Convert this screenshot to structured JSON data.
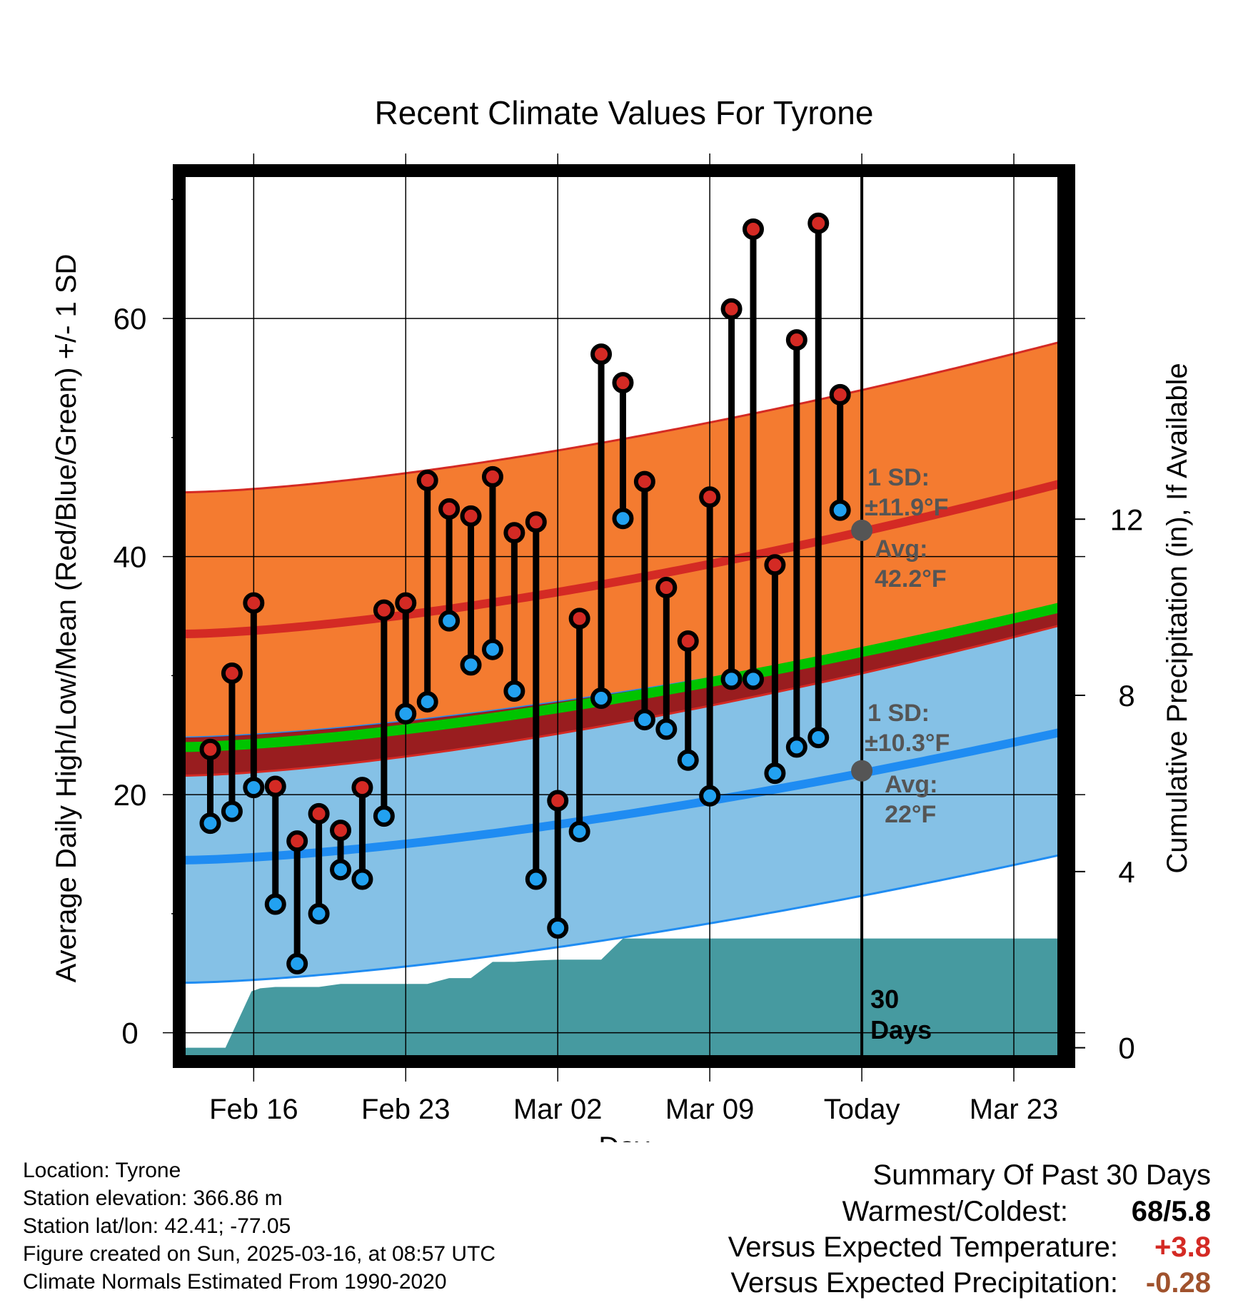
{
  "chart_data": {
    "type": "line",
    "title": "Recent Climate Values For Tyrone",
    "xlabel": "Day",
    "ylabel_left": "Average Daily High/Low/Mean (Red/Blue/Green) +/- 1 SD",
    "ylabel_right": "Cumulative Precipitation (in), If Available",
    "x_tick_labels": [
      "Feb 16",
      "Feb 23",
      "Mar 02",
      "Mar 09",
      "Today",
      "Mar 23"
    ],
    "x_tick_days": [
      16,
      23,
      30,
      37,
      44,
      51
    ],
    "x_range_days": [
      12.8,
      53.3
    ],
    "ylim_left": [
      -2,
      72
    ],
    "yticks_left": [
      0,
      20,
      40,
      60
    ],
    "ylim_right": [
      -0.2,
      19.8
    ],
    "yticks_right": [
      0,
      4,
      8,
      12
    ],
    "today_day": 44,
    "grid": true,
    "normals": {
      "high_mean": {
        "start": 33.5,
        "end": 46.2
      },
      "high_sd": 11.9,
      "low_mean": {
        "start": 14.5,
        "end": 25.3
      },
      "low_sd": 10.3,
      "mean_mean": {
        "start": 24.0,
        "end": 35.8
      },
      "colors": {
        "high_band": "#f47b30",
        "high_line": "#d42a24",
        "low_band": "#85c1e6",
        "low_line": "#1f8cf2",
        "mean_line": "#00c400",
        "overlap": "#9a1414"
      }
    },
    "daily_obs": {
      "days": [
        14,
        15,
        16,
        17,
        18,
        19,
        20,
        21,
        22,
        23,
        24,
        25,
        26,
        27,
        28,
        29,
        30,
        31,
        32,
        33,
        34,
        35,
        36,
        37,
        38,
        39,
        40,
        41,
        42,
        43
      ],
      "high": [
        23.8,
        30.2,
        36.1,
        20.7,
        16.1,
        18.4,
        17.0,
        20.6,
        35.5,
        36.1,
        46.4,
        44.0,
        43.4,
        46.7,
        42.0,
        42.9,
        19.5,
        34.8,
        57.0,
        54.6,
        46.3,
        37.4,
        32.9,
        45.0,
        60.8,
        67.5,
        39.3,
        58.2,
        68.0,
        53.6
      ],
      "low": [
        17.6,
        18.6,
        20.6,
        10.8,
        5.8,
        10.0,
        13.7,
        12.9,
        18.2,
        26.8,
        27.8,
        34.6,
        30.9,
        32.2,
        28.7,
        12.9,
        8.8,
        16.9,
        28.1,
        43.2,
        26.3,
        25.5,
        22.9,
        19.9,
        29.7,
        29.7,
        21.8,
        24.0,
        24.8,
        43.9
      ]
    },
    "today_annotation": {
      "high": {
        "avg": 42.2,
        "sd_label": "1 SD:",
        "sd_value": "±11.9°F",
        "avg_label": "Avg:",
        "avg_value": "42.2°F"
      },
      "low": {
        "avg": 22.0,
        "sd_label": "1 SD:",
        "sd_value": "±10.3°F",
        "avg_label": "Avg:",
        "avg_value": "22°F"
      }
    },
    "precipitation": {
      "days": [
        12.8,
        14.7,
        15.9,
        16.3,
        17.0,
        19.0,
        20.0,
        21.0,
        23.0,
        24.0,
        25.0,
        26.0,
        27.0,
        28.0,
        29.0,
        30.0,
        31.0,
        32.0,
        33.0,
        34.0,
        35.0,
        36.0,
        37.0,
        38.0,
        53.3
      ],
      "values": [
        0,
        0,
        1.28,
        1.35,
        1.38,
        1.38,
        1.45,
        1.45,
        1.45,
        1.45,
        1.58,
        1.58,
        1.95,
        1.95,
        1.98,
        2.0,
        2.0,
        2.0,
        2.48,
        2.48,
        2.48,
        2.48,
        2.48,
        2.48,
        2.48
      ],
      "label": "30 Days",
      "color": "#469aa0"
    }
  },
  "footer": {
    "location": "Location: Tyrone",
    "elevation": "Station elevation: 366.86 m",
    "latlon": "Station lat/lon: 42.41; -77.05",
    "created": "Figure created on Sun, 2025-03-16, at 08:57 UTC",
    "normals": "Climate Normals Estimated From 1990-2020"
  },
  "summary": {
    "heading": "Summary Of Past 30 Days",
    "warm_cold_label": "Warmest/Coldest:",
    "warm_cold_value": "68/5.8",
    "temp_label": "Versus Expected Temperature:",
    "temp_value": "+3.8",
    "temp_color": "#d42a24",
    "precip_label": "Versus Expected Precipitation:",
    "precip_value": "-0.28",
    "precip_color": "#a0522d"
  }
}
